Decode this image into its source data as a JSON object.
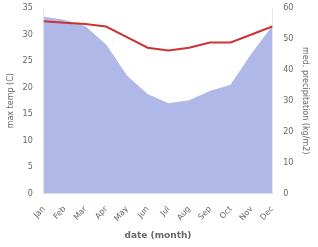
{
  "chart_data": {
    "type": "line",
    "categories": [
      "Jan",
      "Feb",
      "Mar",
      "Apr",
      "May",
      "Jun",
      "Jul",
      "Aug",
      "Sep",
      "Oct",
      "Nov",
      "Dec"
    ],
    "xlabel": "date (month)",
    "ylabel": "max temp (C)",
    "y2label": "med. precipitation (kg/m2)",
    "series": [
      {
        "type": "area",
        "color": "#b0b8e8",
        "axis": "y2",
        "values": [
          57,
          56,
          54,
          48,
          38,
          32,
          29,
          30,
          33,
          35,
          45,
          54
        ]
      },
      {
        "type": "line",
        "color": "#cc3333",
        "axis": "y",
        "values": [
          32.5,
          32.2,
          32.0,
          31.5,
          29.5,
          27.5,
          27.0,
          27.5,
          28.5,
          28.5,
          30.0,
          31.5
        ]
      }
    ],
    "ylim": [
      0,
      35
    ],
    "yticks": [
      0,
      5,
      10,
      15,
      20,
      25,
      30,
      35
    ],
    "y2lim": [
      0,
      60
    ],
    "y2ticks": [
      0,
      10,
      20,
      30,
      40,
      50,
      60
    ],
    "grid": false
  }
}
